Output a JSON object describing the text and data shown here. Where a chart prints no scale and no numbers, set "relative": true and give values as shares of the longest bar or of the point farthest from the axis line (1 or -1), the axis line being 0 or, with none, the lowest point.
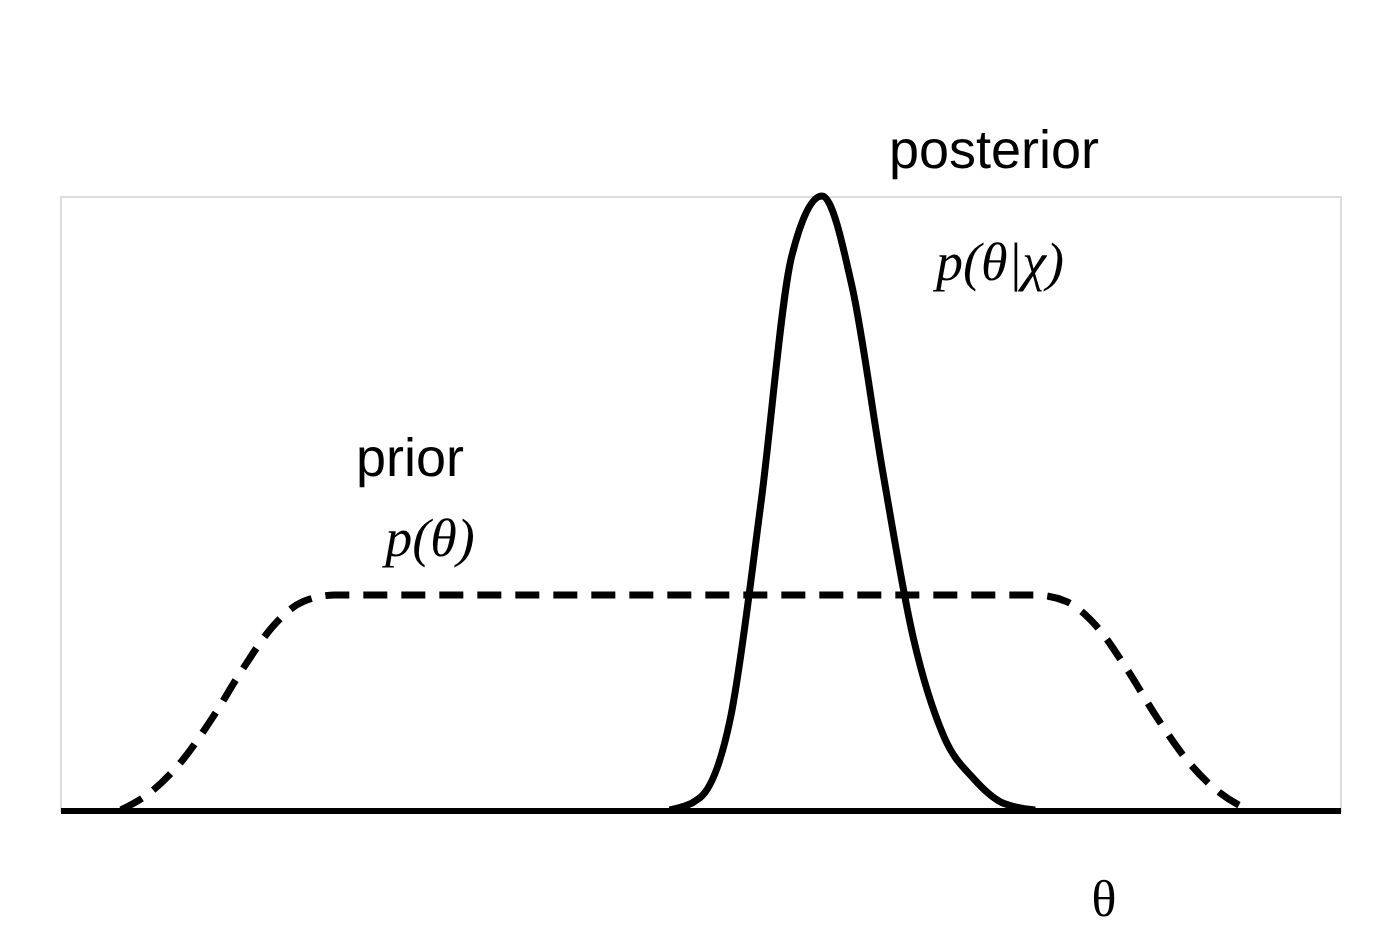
{
  "chart_data": {
    "type": "line",
    "relative": true,
    "xlabel": "θ",
    "categories": [
      null,
      null,
      null,
      null,
      null,
      null,
      null,
      null,
      null,
      null,
      null,
      null,
      null,
      null,
      null,
      null,
      null,
      null,
      null,
      null,
      null,
      null,
      null,
      null,
      null,
      null,
      null,
      null,
      null,
      null,
      null,
      null,
      null,
      null,
      null,
      null,
      null,
      null,
      null,
      null,
      null,
      null,
      null
    ],
    "series": [
      {
        "name": "prior",
        "color": "#000000",
        "line_style": "dashed",
        "values": [
          null,
          null,
          0,
          0.03,
          0.08,
          0.15,
          0.23,
          0.3,
          0.34,
          0.35,
          0.35,
          0.35,
          0.35,
          0.35,
          0.35,
          0.35,
          0.35,
          0.35,
          0.35,
          0.35,
          0.35,
          0.35,
          0.35,
          0.35,
          0.35,
          0.35,
          0.35,
          0.35,
          0.35,
          0.35,
          0.35,
          0.35,
          0.35,
          0.34,
          0.3,
          0.23,
          0.15,
          0.08,
          0.03,
          0,
          null,
          null,
          null
        ]
      },
      {
        "name": "posterior",
        "color": "#000000",
        "line_style": "solid",
        "values": [
          null,
          null,
          null,
          null,
          null,
          null,
          null,
          null,
          null,
          null,
          null,
          null,
          null,
          null,
          null,
          null,
          null,
          null,
          null,
          null,
          0,
          0.02,
          0.15,
          0.5,
          0.9,
          1,
          0.85,
          0.55,
          0.28,
          0.12,
          0.05,
          0.01,
          0,
          null,
          null,
          null,
          null,
          null,
          null,
          null,
          null,
          null,
          null
        ]
      }
    ],
    "annotations": [
      "p(θ)",
      "p(θ|χ)"
    ],
    "grid": false
  }
}
